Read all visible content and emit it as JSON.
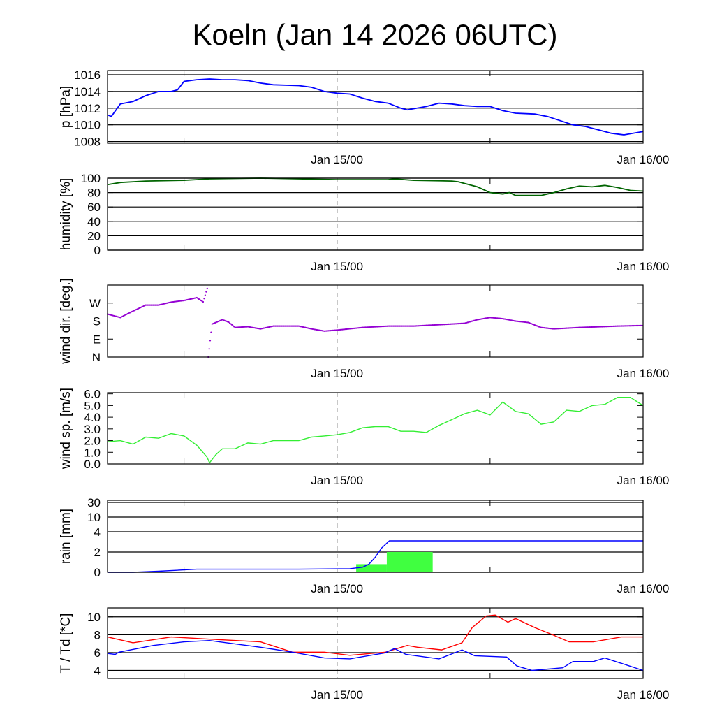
{
  "title": "Koeln (Jan 14 2026 06UTC)",
  "x_axis": {
    "unit": "hours since Jan 14 06UTC",
    "range": [
      0,
      42
    ],
    "labels": [
      {
        "h": 18,
        "text": "Jan 15/00"
      },
      {
        "h": 42,
        "text": "Jan 16/00"
      }
    ],
    "minor_ticks": [
      6,
      30
    ],
    "dashed_marker": 18
  },
  "chart_data": [
    {
      "id": "pressure",
      "type": "line",
      "ylabel": "p [hPa]",
      "ylim": [
        1007.8,
        1016.5
      ],
      "yticks": [
        {
          "v": 1008,
          "text": "1008"
        },
        {
          "v": 1010,
          "text": "1010"
        },
        {
          "v": 1012,
          "text": "1012"
        },
        {
          "v": 1014,
          "text": "1014"
        },
        {
          "v": 1016,
          "text": "1016"
        }
      ],
      "grid": true,
      "series": [
        {
          "name": "pressure",
          "color": "#0000ff",
          "x": [
            0,
            0.3,
            1,
            2,
            3,
            4,
            5,
            5.5,
            6,
            7,
            8,
            9,
            10,
            11,
            12,
            13,
            15,
            16,
            17,
            18,
            19,
            20,
            21,
            22,
            23,
            23.5,
            25,
            26,
            27,
            28,
            29,
            30,
            31,
            32,
            33.5,
            34.5,
            35.5,
            36.5,
            37.5,
            38.5,
            39.5,
            40.5,
            42
          ],
          "y": [
            1011.2,
            1011.0,
            1012.5,
            1012.8,
            1013.5,
            1014.0,
            1014.0,
            1014.2,
            1015.2,
            1015.4,
            1015.5,
            1015.4,
            1015.4,
            1015.3,
            1015.0,
            1014.8,
            1014.7,
            1014.5,
            1014.0,
            1013.8,
            1013.7,
            1013.2,
            1012.8,
            1012.6,
            1012.0,
            1011.8,
            1012.2,
            1012.6,
            1012.5,
            1012.3,
            1012.2,
            1012.2,
            1011.7,
            1011.4,
            1011.3,
            1011.0,
            1010.5,
            1010.0,
            1009.8,
            1009.4,
            1009.0,
            1008.8,
            1009.2
          ]
        }
      ]
    },
    {
      "id": "humidity",
      "type": "line",
      "ylabel": "humidity [%]",
      "ylim": [
        0,
        100
      ],
      "yticks": [
        {
          "v": 0,
          "text": "0"
        },
        {
          "v": 20,
          "text": "20"
        },
        {
          "v": 40,
          "text": "40"
        },
        {
          "v": 60,
          "text": "60"
        },
        {
          "v": 80,
          "text": "80"
        },
        {
          "v": 100,
          "text": "100"
        }
      ],
      "grid": true,
      "series": [
        {
          "name": "humidity",
          "color": "#006400",
          "x": [
            0,
            1,
            3,
            6,
            8,
            12,
            15,
            18,
            22,
            22.5,
            24,
            27,
            27.5,
            29,
            30,
            31,
            31.5,
            32,
            34,
            35,
            36,
            37,
            38,
            39,
            40,
            41,
            42
          ],
          "y": [
            91,
            94,
            96,
            97,
            99,
            100,
            99,
            98,
            98,
            99,
            97,
            96,
            95,
            88,
            80,
            78,
            80,
            76,
            76,
            80,
            85,
            89,
            88,
            90,
            87,
            83,
            82
          ]
        }
      ]
    },
    {
      "id": "wind_direction",
      "type": "scatter",
      "ylabel": "wind dir. [deg.]",
      "ylim": [
        0,
        360
      ],
      "yticks": [
        {
          "v": 0,
          "text": "N"
        },
        {
          "v": 90,
          "text": "E"
        },
        {
          "v": 180,
          "text": "S"
        },
        {
          "v": 270,
          "text": "W"
        }
      ],
      "grid": false,
      "series": [
        {
          "name": "wind direction",
          "color": "#9400d3",
          "x": [
            0,
            1,
            2,
            3,
            4,
            5,
            6,
            7,
            7.5,
            7.9
          ],
          "y": [
            215,
            198,
            230,
            260,
            260,
            275,
            283,
            297,
            276,
            360
          ]
        },
        {
          "name": "wind direction (wrapped)",
          "color": "#9400d3",
          "x": [
            7.9,
            8.2,
            9,
            9.5,
            10,
            11,
            12,
            13,
            15,
            16,
            17,
            18,
            20,
            22,
            24,
            26,
            28,
            29,
            30,
            31,
            32,
            33,
            34,
            35,
            37,
            40,
            42
          ],
          "y": [
            0,
            165,
            187,
            175,
            148,
            152,
            141,
            155,
            155,
            141,
            130,
            135,
            148,
            155,
            155,
            162,
            169,
            187,
            198,
            192,
            180,
            173,
            148,
            141,
            148,
            155,
            158
          ]
        }
      ]
    },
    {
      "id": "wind_speed",
      "type": "line",
      "ylabel": "wind sp. [m/s]",
      "ylim": [
        0,
        6.1
      ],
      "yticks": [
        {
          "v": 0,
          "text": "0.0"
        },
        {
          "v": 1,
          "text": "1.0"
        },
        {
          "v": 2,
          "text": "2.0"
        },
        {
          "v": 3,
          "text": "3.0"
        },
        {
          "v": 4,
          "text": "4.0"
        },
        {
          "v": 5,
          "text": "5.0"
        },
        {
          "v": 6,
          "text": "6.0"
        }
      ],
      "grid": false,
      "series": [
        {
          "name": "wind speed",
          "color": "#33ee33",
          "x": [
            0,
            1,
            2,
            3,
            4,
            5,
            6,
            7,
            7.8,
            8,
            8.5,
            9,
            10,
            11,
            12,
            13,
            14,
            15,
            16,
            17,
            18,
            19,
            20,
            21,
            22,
            23,
            24,
            25,
            26,
            27,
            28,
            29,
            30,
            31,
            32,
            33,
            34,
            35,
            36,
            37,
            38,
            39,
            40,
            41,
            42
          ],
          "y": [
            1.9,
            2.0,
            1.7,
            2.3,
            2.2,
            2.6,
            2.4,
            1.6,
            0.6,
            0.1,
            0.8,
            1.3,
            1.3,
            1.8,
            1.7,
            2.0,
            2.0,
            2.0,
            2.3,
            2.4,
            2.5,
            2.7,
            3.1,
            3.2,
            3.2,
            2.8,
            2.8,
            2.7,
            3.3,
            3.8,
            4.3,
            4.6,
            4.2,
            5.3,
            4.5,
            4.3,
            3.4,
            3.6,
            4.6,
            4.5,
            5.0,
            5.1,
            5.7,
            5.7,
            5.0
          ]
        }
      ]
    },
    {
      "id": "rain",
      "type": "bar",
      "ylabel": "rain [mm]",
      "ylim": [
        0,
        32
      ],
      "yticks": [
        {
          "v": 0,
          "text": "0"
        },
        {
          "v": 2,
          "text": "2"
        },
        {
          "v": 4,
          "text": "4"
        },
        {
          "v": 10,
          "text": "10"
        },
        {
          "v": 30,
          "text": "30"
        }
      ],
      "grid": true,
      "bars": [
        {
          "start": 19.5,
          "end": 21.9,
          "value": 0.8,
          "color": "#40ff40"
        },
        {
          "start": 21.9,
          "end": 25.5,
          "value": 2.0,
          "color": "#40ff40"
        }
      ],
      "series": [
        {
          "name": "accumulated rain",
          "color": "#0000ff",
          "x": [
            0,
            2,
            4,
            7,
            10,
            15,
            19,
            20,
            20.5,
            21,
            21.5,
            22.1,
            30,
            42
          ],
          "y": [
            0,
            0,
            0.1,
            0.3,
            0.3,
            0.3,
            0.35,
            0.5,
            0.8,
            1.5,
            2.4,
            3.1,
            3.1,
            3.1
          ]
        }
      ]
    },
    {
      "id": "temperature",
      "type": "line",
      "ylabel": "T / Td [*C]",
      "ylim": [
        3.1,
        11.0
      ],
      "yticks": [
        {
          "v": 4,
          "text": "4"
        },
        {
          "v": 6,
          "text": "6"
        },
        {
          "v": 8,
          "text": "8"
        },
        {
          "v": 10,
          "text": "10"
        }
      ],
      "grid": true,
      "series": [
        {
          "name": "T",
          "color": "#ff0000",
          "x": [
            0,
            2,
            5,
            8,
            12,
            14.5,
            17,
            19,
            21.8,
            23.5,
            24.3,
            26.2,
            27.8,
            28.6,
            29.7,
            30.4,
            31.4,
            32,
            33.5,
            34.9,
            36.2,
            38.1,
            40.3,
            42
          ],
          "y": [
            7.75,
            7.1,
            7.75,
            7.5,
            7.2,
            6.05,
            6.05,
            5.7,
            6.05,
            6.8,
            6.6,
            6.3,
            7.1,
            8.8,
            10.1,
            10.2,
            9.4,
            9.8,
            8.8,
            8.0,
            7.2,
            7.2,
            7.75,
            7.75
          ]
        },
        {
          "name": "Td",
          "color": "#0000ff",
          "x": [
            0,
            0.6,
            0.9,
            3.6,
            6,
            8,
            12,
            14.5,
            17,
            19,
            21.7,
            22.5,
            23.4,
            26,
            27.8,
            28.8,
            31.3,
            32.1,
            33.3,
            35.7,
            36.5,
            38.1,
            39,
            42
          ],
          "y": [
            5.9,
            5.8,
            6.05,
            6.8,
            7.2,
            7.35,
            6.6,
            6.05,
            5.4,
            5.3,
            5.95,
            6.45,
            5.8,
            5.3,
            6.3,
            5.65,
            5.5,
            4.5,
            4.0,
            4.3,
            5.0,
            5.0,
            5.4,
            4.0
          ]
        }
      ]
    }
  ]
}
